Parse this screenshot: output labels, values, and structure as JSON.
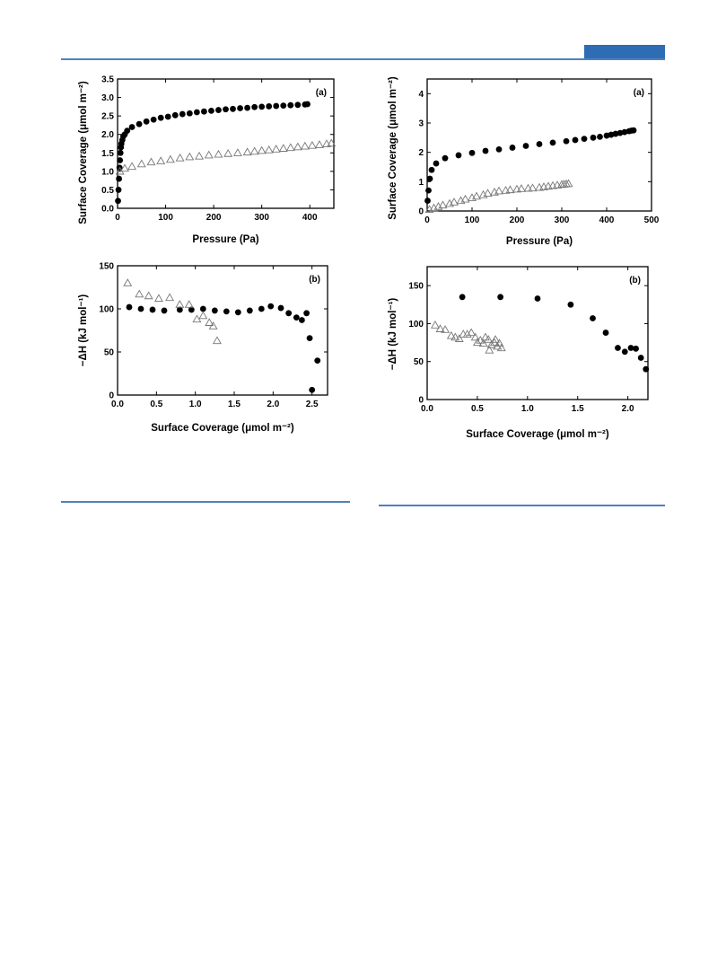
{
  "page": {
    "accent_color": "#2e6db4",
    "rule_color": "#4f81bd"
  },
  "chart_data": [
    {
      "id": "left-a",
      "type": "scatter",
      "panel_label": "(a)",
      "xlabel": "Pressure (Pa)",
      "ylabel": "Surface Coverage (μmol m⁻²)",
      "xlim": [
        0,
        450
      ],
      "ylim": [
        0,
        3.5
      ],
      "xticks": [
        "0",
        "100",
        "200",
        "300",
        "400"
      ],
      "yticks": [
        "0.0",
        "0.5",
        "1.0",
        "1.5",
        "2.0",
        "2.5",
        "3.0",
        "3.5"
      ],
      "series": [
        {
          "marker": "filled-circle",
          "x": [
            1,
            2,
            3,
            4,
            5,
            6,
            7,
            8,
            10,
            12,
            15,
            20,
            30,
            45,
            60,
            75,
            90,
            105,
            120,
            135,
            150,
            165,
            180,
            195,
            210,
            225,
            240,
            255,
            270,
            285,
            300,
            315,
            330,
            345,
            360,
            375,
            390,
            395
          ],
          "y": [
            0.2,
            0.5,
            0.8,
            1.1,
            1.3,
            1.5,
            1.65,
            1.75,
            1.85,
            1.95,
            2.0,
            2.1,
            2.2,
            2.28,
            2.35,
            2.4,
            2.45,
            2.48,
            2.52,
            2.55,
            2.57,
            2.6,
            2.62,
            2.64,
            2.66,
            2.68,
            2.69,
            2.71,
            2.72,
            2.74,
            2.75,
            2.76,
            2.77,
            2.78,
            2.79,
            2.8,
            2.81,
            2.82
          ]
        },
        {
          "marker": "open-triangle",
          "x": [
            5,
            15,
            30,
            50,
            70,
            90,
            110,
            130,
            150,
            170,
            190,
            210,
            230,
            250,
            270,
            285,
            300,
            315,
            330,
            345,
            360,
            375,
            390,
            405,
            420,
            435,
            445
          ],
          "y": [
            1.0,
            1.08,
            1.13,
            1.2,
            1.25,
            1.28,
            1.32,
            1.36,
            1.39,
            1.41,
            1.44,
            1.46,
            1.48,
            1.5,
            1.52,
            1.54,
            1.56,
            1.58,
            1.6,
            1.62,
            1.64,
            1.66,
            1.68,
            1.7,
            1.72,
            1.74,
            1.76
          ]
        }
      ]
    },
    {
      "id": "left-b",
      "type": "scatter",
      "panel_label": "(b)",
      "xlabel": "Surface Coverage (μmol m⁻²)",
      "ylabel": "−ΔH (kJ mol⁻¹)",
      "xlim": [
        0,
        2.7
      ],
      "ylim": [
        0,
        150
      ],
      "xticks": [
        "0.0",
        "0.5",
        "1.0",
        "1.5",
        "2.0",
        "2.5"
      ],
      "yticks": [
        "0",
        "50",
        "100",
        "150"
      ],
      "series": [
        {
          "marker": "filled-circle",
          "x": [
            0.15,
            0.3,
            0.45,
            0.6,
            0.8,
            0.95,
            1.1,
            1.25,
            1.4,
            1.55,
            1.7,
            1.85,
            1.97,
            2.1,
            2.2,
            2.3,
            2.37,
            2.43,
            2.47,
            2.5,
            2.57
          ],
          "y": [
            102,
            100,
            99,
            98,
            99,
            99,
            100,
            98,
            97,
            96,
            98,
            100,
            103,
            101,
            95,
            90,
            87,
            95,
            66,
            6,
            40
          ]
        },
        {
          "marker": "open-triangle",
          "x": [
            0.13,
            0.28,
            0.4,
            0.53,
            0.67,
            0.8,
            0.92,
            1.02,
            1.1,
            1.18,
            1.23,
            1.28
          ],
          "y": [
            130,
            117,
            115,
            112,
            113,
            105,
            105,
            88,
            92,
            84,
            80,
            63
          ]
        }
      ]
    },
    {
      "id": "right-a",
      "type": "scatter",
      "panel_label": "(a)",
      "xlabel": "Pressure (Pa)",
      "ylabel": "Surface Coverage (μmol m⁻²)",
      "xlim": [
        0,
        500
      ],
      "ylim": [
        0,
        4.5
      ],
      "xticks": [
        "0",
        "100",
        "200",
        "300",
        "400",
        "500"
      ],
      "yticks": [
        "0",
        "1",
        "2",
        "3",
        "4"
      ],
      "series": [
        {
          "marker": "filled-circle",
          "x": [
            1,
            3,
            6,
            10,
            20,
            40,
            70,
            100,
            130,
            160,
            190,
            220,
            250,
            280,
            310,
            330,
            350,
            370,
            385,
            400,
            410,
            420,
            430,
            440,
            450,
            455,
            460
          ],
          "y": [
            0.35,
            0.7,
            1.1,
            1.4,
            1.62,
            1.8,
            1.9,
            1.98,
            2.05,
            2.1,
            2.16,
            2.22,
            2.28,
            2.33,
            2.38,
            2.42,
            2.46,
            2.5,
            2.53,
            2.57,
            2.6,
            2.63,
            2.66,
            2.69,
            2.72,
            2.74,
            2.75
          ]
        },
        {
          "marker": "open-triangle",
          "x": [
            5,
            15,
            25,
            35,
            50,
            60,
            75,
            85,
            100,
            110,
            125,
            135,
            150,
            160,
            175,
            185,
            200,
            210,
            225,
            235,
            250,
            260,
            270,
            280,
            290,
            300,
            305,
            310,
            315
          ],
          "y": [
            0.05,
            0.1,
            0.15,
            0.2,
            0.25,
            0.3,
            0.35,
            0.4,
            0.45,
            0.5,
            0.55,
            0.6,
            0.64,
            0.68,
            0.7,
            0.72,
            0.74,
            0.76,
            0.77,
            0.78,
            0.8,
            0.82,
            0.84,
            0.86,
            0.88,
            0.9,
            0.91,
            0.92,
            0.93
          ]
        }
      ]
    },
    {
      "id": "right-b",
      "type": "scatter",
      "panel_label": "(b)",
      "xlabel": "Surface Coverage (μmol m⁻²)",
      "ylabel": "−ΔH (kJ mol⁻¹)",
      "xlim": [
        0,
        2.2
      ],
      "ylim": [
        0,
        175
      ],
      "xticks": [
        "0.0",
        "0.5",
        "1.0",
        "1.5",
        "2.0"
      ],
      "yticks": [
        "0",
        "50",
        "100",
        "150"
      ],
      "series": [
        {
          "marker": "filled-circle",
          "x": [
            0.35,
            0.73,
            1.1,
            1.43,
            1.65,
            1.78,
            1.9,
            1.97,
            2.03,
            2.08,
            2.13,
            2.18
          ],
          "y": [
            135,
            135,
            133,
            125,
            107,
            88,
            68,
            63,
            68,
            67,
            55,
            40
          ]
        },
        {
          "marker": "open-triangle",
          "x": [
            0.08,
            0.13,
            0.18,
            0.24,
            0.28,
            0.32,
            0.36,
            0.4,
            0.44,
            0.48,
            0.5,
            0.53,
            0.56,
            0.58,
            0.61,
            0.64,
            0.67,
            0.7,
            0.72,
            0.74,
            0.62,
            0.68
          ],
          "y": [
            98,
            93,
            92,
            84,
            82,
            80,
            86,
            86,
            88,
            82,
            75,
            78,
            74,
            82,
            79,
            72,
            75,
            70,
            74,
            68,
            65,
            79
          ]
        }
      ]
    }
  ]
}
